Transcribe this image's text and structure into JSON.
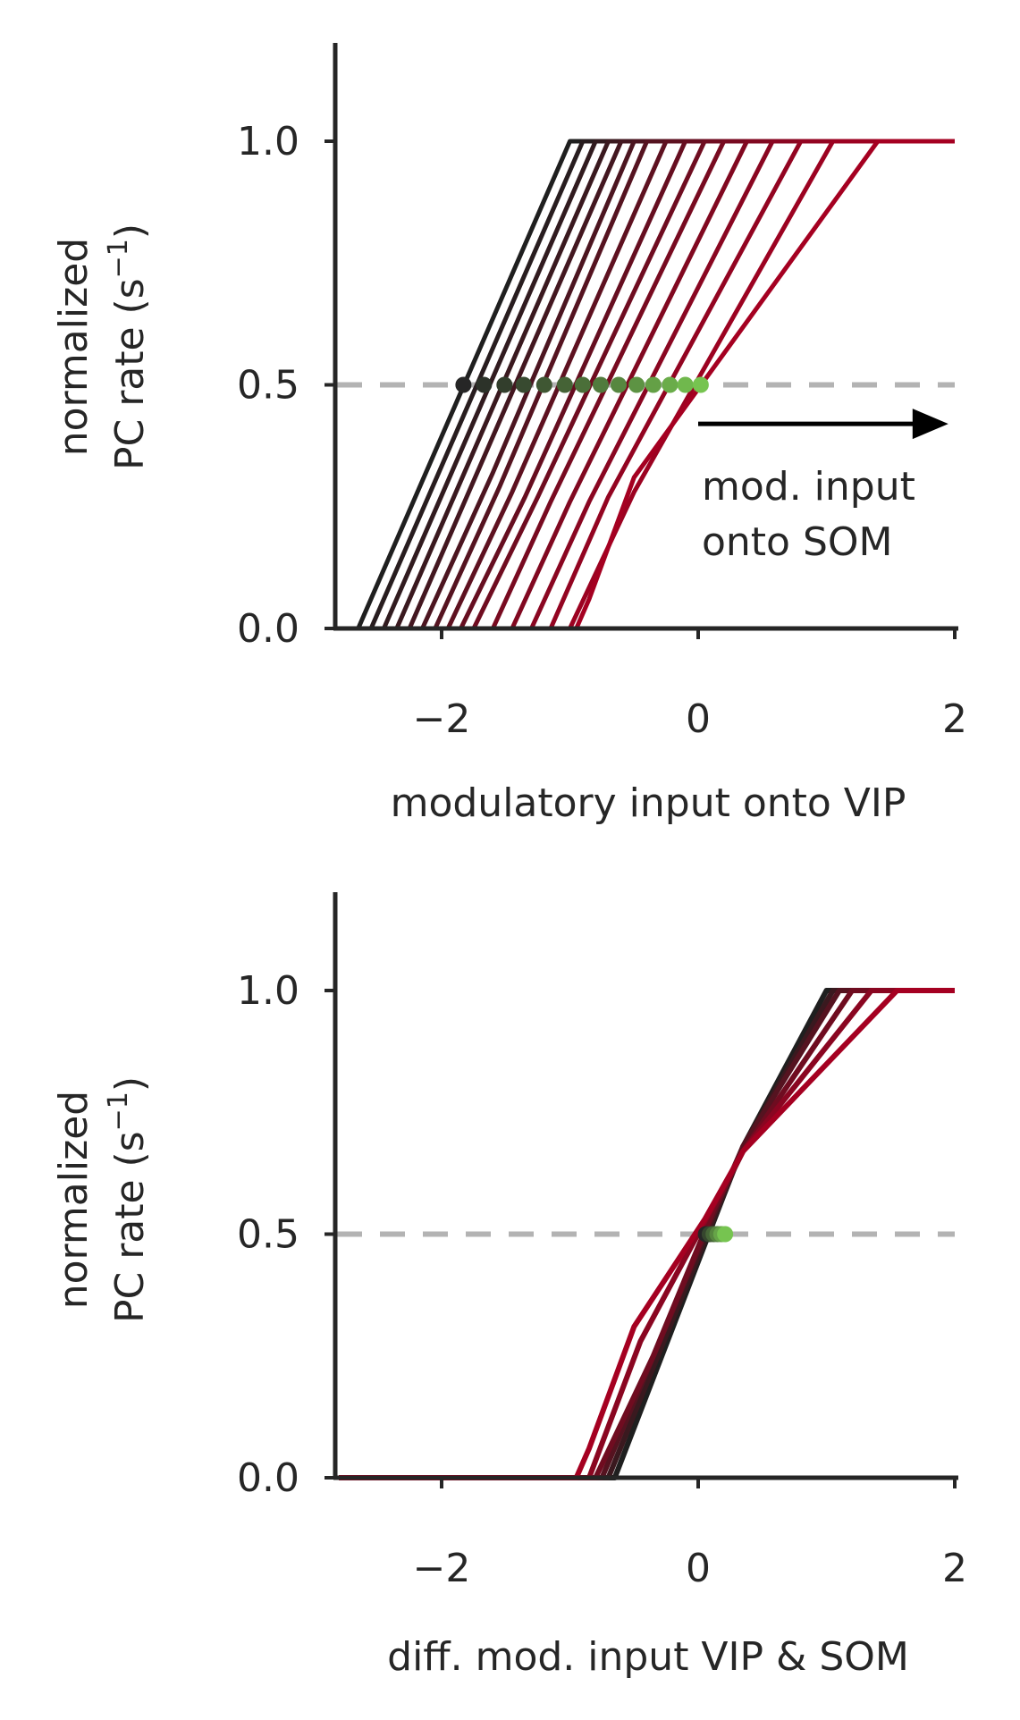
{
  "colors": {
    "axis": "#262626",
    "dashed_ref": "#b3b3b3",
    "curve_start": "#1f1f1f",
    "curve_end": "#a50021",
    "dot_start": "#262626",
    "dot_end": "#76c450",
    "arrow": "#000000"
  },
  "chart_data": [
    {
      "type": "line",
      "xlabel": "modulatory input onto VIP",
      "ylabel_line1": "normalized",
      "ylabel_line2": "PC rate (s",
      "ylabel_sup": "−1",
      "ylabel_close": ")",
      "xlim": [
        -2.8,
        2.0
      ],
      "ylim": [
        0.0,
        1.2
      ],
      "xticks": [
        -2,
        0,
        2
      ],
      "xtick_labels": [
        "−2",
        "0",
        "2"
      ],
      "yticks": [
        0.0,
        0.5,
        1.0
      ],
      "ytick_labels": [
        "0.0",
        "0.5",
        "1.0"
      ],
      "reference_line": {
        "y": 0.5,
        "style": "dashed"
      },
      "annotation": {
        "line1": "mod. input",
        "line2": "onto SOM",
        "arrow_from": [
          0.0,
          0.42
        ],
        "arrow_to": [
          1.95,
          0.42
        ]
      },
      "series": [
        {
          "x": [
            -2.8,
            -2.65,
            -1.0,
            2.0
          ],
          "y": [
            0.0,
            0.0,
            1.0,
            1.0
          ]
        },
        {
          "x": [
            -2.8,
            -2.55,
            -0.9,
            2.0
          ],
          "y": [
            0.0,
            0.0,
            1.0,
            1.0
          ]
        },
        {
          "x": [
            -2.8,
            -2.45,
            -0.8,
            2.0
          ],
          "y": [
            0.0,
            0.0,
            1.0,
            1.0
          ]
        },
        {
          "x": [
            -2.8,
            -2.35,
            -0.7,
            2.0
          ],
          "y": [
            0.0,
            0.0,
            1.0,
            1.0
          ]
        },
        {
          "x": [
            -2.8,
            -2.25,
            -0.6,
            2.0
          ],
          "y": [
            0.0,
            0.0,
            1.0,
            1.0
          ]
        },
        {
          "x": [
            -2.8,
            -2.15,
            -1.6,
            -0.5,
            2.0
          ],
          "y": [
            0.0,
            0.0,
            0.32,
            1.0,
            1.0
          ]
        },
        {
          "x": [
            -2.8,
            -2.05,
            -1.55,
            -0.4,
            2.0
          ],
          "y": [
            0.0,
            0.0,
            0.29,
            1.0,
            1.0
          ]
        },
        {
          "x": [
            -2.8,
            -1.95,
            -1.45,
            -0.25,
            2.0
          ],
          "y": [
            0.0,
            0.0,
            0.28,
            1.0,
            1.0
          ]
        },
        {
          "x": [
            -2.8,
            -1.85,
            -1.35,
            -0.1,
            2.0
          ],
          "y": [
            0.0,
            0.0,
            0.27,
            1.0,
            1.0
          ]
        },
        {
          "x": [
            -2.8,
            -1.75,
            -1.25,
            0.05,
            2.0
          ],
          "y": [
            0.0,
            0.0,
            0.27,
            1.0,
            1.0
          ]
        },
        {
          "x": [
            -2.8,
            -1.6,
            -1.15,
            0.2,
            2.0
          ],
          "y": [
            0.0,
            0.0,
            0.26,
            1.0,
            1.0
          ]
        },
        {
          "x": [
            -2.8,
            -1.45,
            -1.0,
            0.38,
            2.0
          ],
          "y": [
            0.0,
            0.0,
            0.26,
            1.0,
            1.0
          ]
        },
        {
          "x": [
            -2.8,
            -1.3,
            -0.85,
            0.58,
            2.0
          ],
          "y": [
            0.0,
            0.0,
            0.26,
            1.0,
            1.0
          ]
        },
        {
          "x": [
            -2.8,
            -1.15,
            -0.7,
            0.8,
            2.0
          ],
          "y": [
            0.0,
            0.0,
            0.27,
            1.0,
            1.0
          ]
        },
        {
          "x": [
            -2.8,
            -1.0,
            -0.5,
            1.05,
            2.0
          ],
          "y": [
            0.0,
            0.0,
            0.28,
            1.0,
            1.0
          ]
        },
        {
          "x": [
            -2.8,
            -0.95,
            -0.85,
            -0.5,
            1.4,
            2.0
          ],
          "y": [
            0.0,
            0.0,
            0.06,
            0.31,
            1.0,
            1.0
          ]
        }
      ],
      "points": [
        {
          "x": -1.83,
          "y": 0.5
        },
        {
          "x": -1.67,
          "y": 0.5
        },
        {
          "x": -1.51,
          "y": 0.5
        },
        {
          "x": -1.36,
          "y": 0.5
        },
        {
          "x": -1.2,
          "y": 0.5
        },
        {
          "x": -1.04,
          "y": 0.5
        },
        {
          "x": -0.9,
          "y": 0.5
        },
        {
          "x": -0.76,
          "y": 0.5
        },
        {
          "x": -0.62,
          "y": 0.5
        },
        {
          "x": -0.48,
          "y": 0.5
        },
        {
          "x": -0.35,
          "y": 0.5
        },
        {
          "x": -0.22,
          "y": 0.5
        },
        {
          "x": -0.1,
          "y": 0.5
        },
        {
          "x": 0.02,
          "y": 0.5
        }
      ]
    },
    {
      "type": "line",
      "xlabel": "diff. mod. input VIP & SOM",
      "ylabel_line1": "normalized",
      "ylabel_line2": "PC rate (s",
      "ylabel_sup": "−1",
      "ylabel_close": ")",
      "xlim": [
        -2.8,
        2.0
      ],
      "ylim": [
        0.0,
        1.2
      ],
      "xticks": [
        -2,
        0,
        2
      ],
      "xtick_labels": [
        "−2",
        "0",
        "2"
      ],
      "yticks": [
        0.0,
        0.5,
        1.0
      ],
      "ytick_labels": [
        "0.0",
        "0.5",
        "1.0"
      ],
      "reference_line": {
        "y": 0.5,
        "style": "dashed"
      },
      "series": [
        {
          "x": [
            -2.8,
            -0.65,
            0.2,
            0.35,
            1.0,
            2.0
          ],
          "y": [
            0.0,
            0.0,
            0.58,
            0.68,
            1.0,
            1.0
          ]
        },
        {
          "x": [
            -2.8,
            -0.7,
            0.18,
            0.35,
            1.05,
            2.0
          ],
          "y": [
            0.0,
            0.0,
            0.57,
            0.68,
            1.0,
            1.0
          ]
        },
        {
          "x": [
            -2.8,
            -0.75,
            0.15,
            0.35,
            1.1,
            2.0
          ],
          "y": [
            0.0,
            0.0,
            0.56,
            0.68,
            1.0,
            1.0
          ]
        },
        {
          "x": [
            -2.8,
            -0.8,
            -0.35,
            0.12,
            0.35,
            1.2,
            2.0
          ],
          "y": [
            0.0,
            0.0,
            0.25,
            0.55,
            0.67,
            1.0,
            1.0
          ]
        },
        {
          "x": [
            -2.8,
            -0.85,
            -0.45,
            0.08,
            0.35,
            1.35,
            2.0
          ],
          "y": [
            0.0,
            0.0,
            0.28,
            0.54,
            0.67,
            1.0,
            1.0
          ]
        },
        {
          "x": [
            -2.8,
            -0.95,
            -0.85,
            -0.5,
            0.05,
            0.35,
            1.55,
            2.0
          ],
          "y": [
            0.0,
            0.0,
            0.06,
            0.31,
            0.53,
            0.67,
            1.0,
            1.0
          ]
        }
      ],
      "points": [
        {
          "x": 0.06,
          "y": 0.5
        },
        {
          "x": 0.09,
          "y": 0.5
        },
        {
          "x": 0.12,
          "y": 0.5
        },
        {
          "x": 0.15,
          "y": 0.5
        },
        {
          "x": 0.18,
          "y": 0.5
        },
        {
          "x": 0.21,
          "y": 0.5
        }
      ]
    }
  ]
}
